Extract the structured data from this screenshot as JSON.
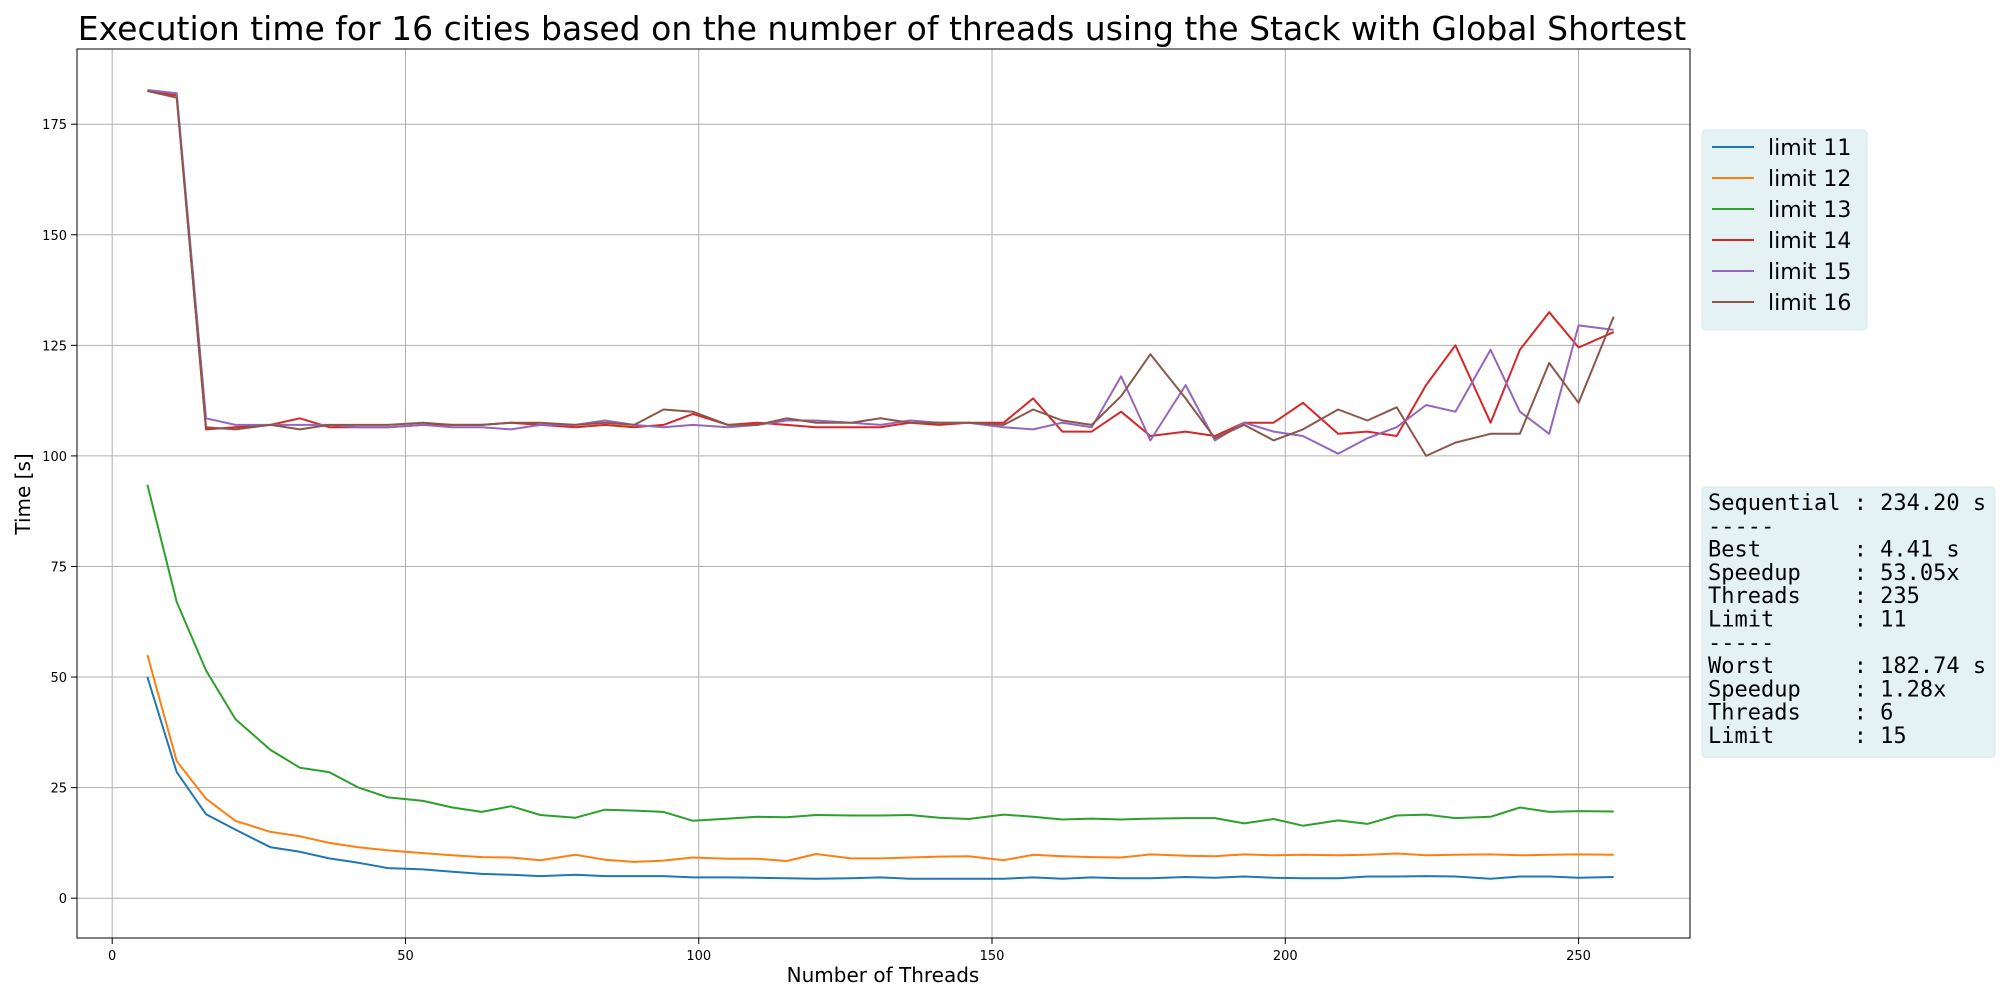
{
  "chart_data": {
    "type": "line",
    "title": "Execution time for 16 cities based on the number of threads using the Stack with Global Shortest",
    "xlabel": "Number of Threads",
    "ylabel": "Time [s]",
    "xlim": [
      -6,
      269
    ],
    "ylim": [
      -9,
      192
    ],
    "xticks": [
      0,
      50,
      100,
      150,
      200,
      250
    ],
    "yticks": [
      0,
      25,
      50,
      75,
      100,
      125,
      150,
      175
    ],
    "grid": true,
    "legend_position": "outside-right-top",
    "x": [
      6,
      11,
      16,
      21,
      27,
      32,
      37,
      42,
      47,
      53,
      58,
      63,
      68,
      73,
      79,
      84,
      89,
      94,
      99,
      105,
      110,
      115,
      120,
      126,
      131,
      136,
      141,
      146,
      152,
      157,
      162,
      167,
      172,
      177,
      183,
      188,
      193,
      198,
      203,
      209,
      214,
      219,
      224,
      229,
      235,
      240,
      245,
      250,
      256
    ],
    "series": [
      {
        "name": "limit 11",
        "color": "#1f77b4",
        "values": [
          50.0,
          28.5,
          19.0,
          15.5,
          11.5,
          10.5,
          9.0,
          8.0,
          6.8,
          6.5,
          6.0,
          5.5,
          5.3,
          5.0,
          5.3,
          5.0,
          5.0,
          5.0,
          4.7,
          4.7,
          4.6,
          4.5,
          4.4,
          4.5,
          4.7,
          4.4,
          4.4,
          4.4,
          4.4,
          4.7,
          4.4,
          4.7,
          4.5,
          4.5,
          4.8,
          4.6,
          4.9,
          4.6,
          4.5,
          4.5,
          4.9,
          4.9,
          5.0,
          4.9,
          4.41,
          4.9,
          4.9,
          4.6,
          4.8
        ]
      },
      {
        "name": "limit 12",
        "color": "#ff7f0e",
        "values": [
          55.0,
          31.0,
          22.5,
          17.5,
          15.0,
          14.0,
          12.5,
          11.5,
          10.8,
          10.2,
          9.7,
          9.3,
          9.2,
          8.6,
          9.8,
          8.7,
          8.2,
          8.5,
          9.2,
          8.9,
          8.9,
          8.4,
          10.0,
          9.0,
          9.0,
          9.2,
          9.4,
          9.5,
          8.6,
          9.8,
          9.5,
          9.3,
          9.2,
          9.9,
          9.6,
          9.5,
          9.9,
          9.7,
          9.8,
          9.7,
          9.8,
          10.1,
          9.7,
          9.8,
          9.9,
          9.7,
          9.8,
          9.9,
          9.8
        ]
      },
      {
        "name": "limit 13",
        "color": "#2ca02c",
        "values": [
          93.5,
          67.0,
          51.5,
          40.5,
          33.5,
          29.5,
          28.5,
          25.0,
          22.8,
          22.0,
          20.5,
          19.5,
          20.8,
          18.8,
          18.2,
          20.0,
          19.8,
          19.5,
          17.5,
          18.0,
          18.4,
          18.3,
          18.8,
          18.7,
          18.7,
          18.8,
          18.2,
          17.9,
          18.9,
          18.4,
          17.8,
          18.0,
          17.8,
          18.0,
          18.1,
          18.1,
          16.9,
          17.9,
          16.4,
          17.6,
          16.8,
          18.7,
          18.9,
          18.1,
          18.4,
          20.5,
          19.5,
          19.7,
          19.6
        ]
      },
      {
        "name": "limit 14",
        "color": "#d62728",
        "values": [
          182.5,
          181.5,
          106.0,
          106.5,
          107.0,
          108.5,
          106.5,
          106.5,
          106.5,
          107.0,
          107.0,
          107.0,
          107.5,
          107.0,
          106.5,
          107.0,
          106.5,
          107.0,
          109.5,
          107.0,
          107.5,
          107.0,
          106.5,
          106.5,
          106.5,
          107.5,
          107.0,
          107.5,
          107.5,
          113.0,
          105.5,
          105.5,
          110.0,
          104.5,
          105.5,
          104.5,
          107.5,
          107.5,
          112.0,
          105.0,
          105.5,
          104.5,
          116.0,
          125.0,
          107.5,
          124.0,
          132.5,
          124.5,
          128.0
        ]
      },
      {
        "name": "limit 15",
        "color": "#9467bd",
        "values": [
          182.74,
          182.0,
          108.5,
          107.0,
          107.0,
          107.0,
          107.0,
          106.5,
          106.5,
          107.0,
          106.5,
          106.5,
          106.0,
          107.0,
          107.0,
          108.0,
          107.0,
          106.5,
          107.0,
          106.5,
          107.0,
          108.0,
          108.0,
          107.5,
          107.0,
          108.0,
          107.5,
          107.5,
          106.5,
          106.0,
          107.5,
          106.5,
          118.0,
          103.5,
          116.0,
          103.5,
          107.5,
          105.5,
          104.5,
          100.5,
          104.0,
          106.5,
          111.5,
          110.0,
          124.0,
          110.0,
          105.0,
          129.5,
          128.5
        ]
      },
      {
        "name": "limit 16",
        "color": "#8c564b",
        "values": [
          182.5,
          181.0,
          106.5,
          106.0,
          107.0,
          106.0,
          107.0,
          107.0,
          107.0,
          107.5,
          107.0,
          107.0,
          107.5,
          107.5,
          107.0,
          107.5,
          107.0,
          110.5,
          110.0,
          107.0,
          107.0,
          108.5,
          107.5,
          107.5,
          108.5,
          107.5,
          107.5,
          107.5,
          107.0,
          110.5,
          108.0,
          107.0,
          113.5,
          123.0,
          113.0,
          104.0,
          107.0,
          103.5,
          106.0,
          110.5,
          108.0,
          111.0,
          100.0,
          103.0,
          105.0,
          105.0,
          121.0,
          112.0,
          131.5
        ]
      }
    ]
  },
  "stats_box": {
    "lines": [
      "Sequential : 234.20 s",
      "-----",
      "Best       : 4.41 s",
      "Speedup    : 53.05x",
      "Threads    : 235",
      "Limit      : 11",
      "-----",
      "Worst      : 182.74 s",
      "Speedup    : 1.28x",
      "Threads    : 6",
      "Limit      : 15"
    ],
    "background": "#e4f2f4"
  },
  "legend_background": "#e4f2f4"
}
